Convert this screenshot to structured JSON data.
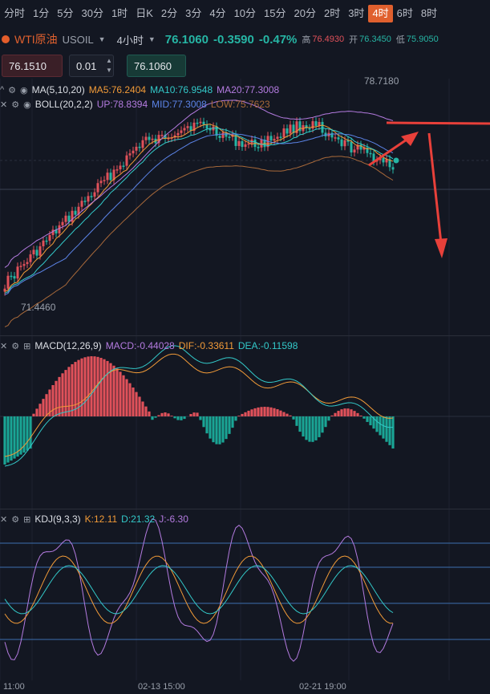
{
  "tabs": [
    "分时",
    "1分",
    "5分",
    "30分",
    "1时",
    "日K",
    "2分",
    "3分",
    "4分",
    "10分",
    "15分",
    "20分",
    "2时",
    "3时",
    "4时",
    "6时",
    "8时"
  ],
  "active_tab": "4时",
  "symbol": {
    "name": "WTI原油",
    "code": "USOIL",
    "period": "4小时",
    "last": "76.1060",
    "change": "-0.3590",
    "change_pct": "-0.47%",
    "high_label": "高",
    "high": "76.4930",
    "open_label": "开",
    "open": "76.3450",
    "low_label": "低",
    "low": "75.9050"
  },
  "order": {
    "sell": "76.1510",
    "qty": "0.01",
    "buy": "76.1060"
  },
  "main_legend": {
    "ma": "MA(5,10,20)",
    "ma5": "MA5:76.2404",
    "ma10": "MA10:76.9548",
    "ma20": "MA20:77.3008",
    "boll": "BOLL(20,2,2)",
    "up": "UP:78.8394",
    "mid": "MID:77.3008",
    "low": "LOW:75.7623"
  },
  "price_notes": {
    "high_mark": "78.7180",
    "low_mark": "71.4460"
  },
  "macd_legend": {
    "name": "MACD(12,26,9)",
    "macd": "MACD:-0.44028",
    "dif": "DIF:-0.33611",
    "dea": "DEA:-0.11598"
  },
  "kdj_legend": {
    "name": "KDJ(9,3,3)",
    "k": "K:12.11",
    "d": "D:21.32",
    "j": "J:-6.30"
  },
  "time_labels": [
    "11:00",
    "02-13 15:00",
    "02-21 19:00"
  ],
  "icons": [
    "collapse-icon",
    "eye-icon",
    "expand-icon",
    "settings-icon"
  ],
  "colors": {
    "up": "#e0515a",
    "down": "#26b5a4",
    "accent": "#e0602e",
    "annotation": "#e8403a"
  }
}
